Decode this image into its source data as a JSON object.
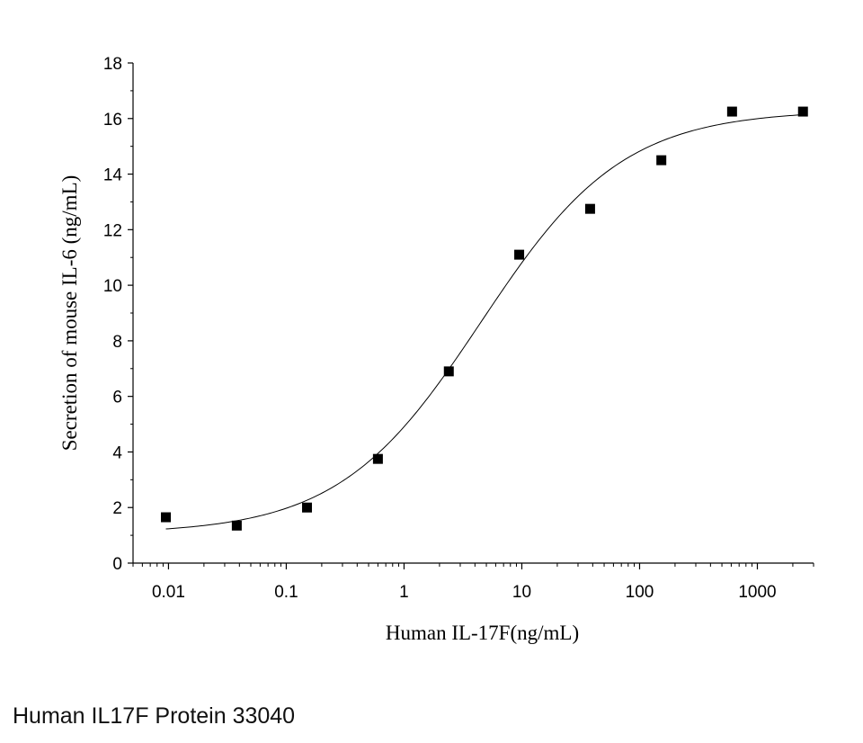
{
  "caption": "Human IL17F Protein 33040",
  "chart_data": {
    "type": "scatter",
    "xlabel": "Human IL-17F(ng/mL)",
    "ylabel": "Secretion of mouse IL-6 (ng/mL)",
    "xscale": "log",
    "xlim": [
      0.005,
      3000
    ],
    "ylim": [
      0,
      18
    ],
    "x_ticks": [
      0.01,
      0.1,
      1,
      10,
      100,
      1000
    ],
    "x_tick_labels": [
      "0.01",
      "0.1",
      "1",
      "10",
      "100",
      "1000"
    ],
    "y_ticks": [
      0,
      2,
      4,
      6,
      8,
      10,
      12,
      14,
      16,
      18
    ],
    "y_tick_labels": [
      "0",
      "2",
      "4",
      "6",
      "8",
      "10",
      "12",
      "14",
      "16",
      "18"
    ],
    "grid": false,
    "points": [
      {
        "x": 0.0095,
        "y": 1.65
      },
      {
        "x": 0.038,
        "y": 1.35
      },
      {
        "x": 0.15,
        "y": 2.0
      },
      {
        "x": 0.6,
        "y": 3.75
      },
      {
        "x": 2.4,
        "y": 6.9
      },
      {
        "x": 9.5,
        "y": 11.1
      },
      {
        "x": 38,
        "y": 12.75
      },
      {
        "x": 153,
        "y": 14.5
      },
      {
        "x": 610,
        "y": 16.25
      },
      {
        "x": 2440,
        "y": 16.25
      }
    ],
    "fit_curve": {
      "model": "4PL",
      "bottom": 1.05,
      "top": 16.3,
      "ec50": 4.5,
      "hill": 0.72,
      "x_range": [
        0.0095,
        2440
      ]
    },
    "colors": {
      "marker": "#000000",
      "curve": "#000000",
      "axis": "#000000"
    }
  }
}
